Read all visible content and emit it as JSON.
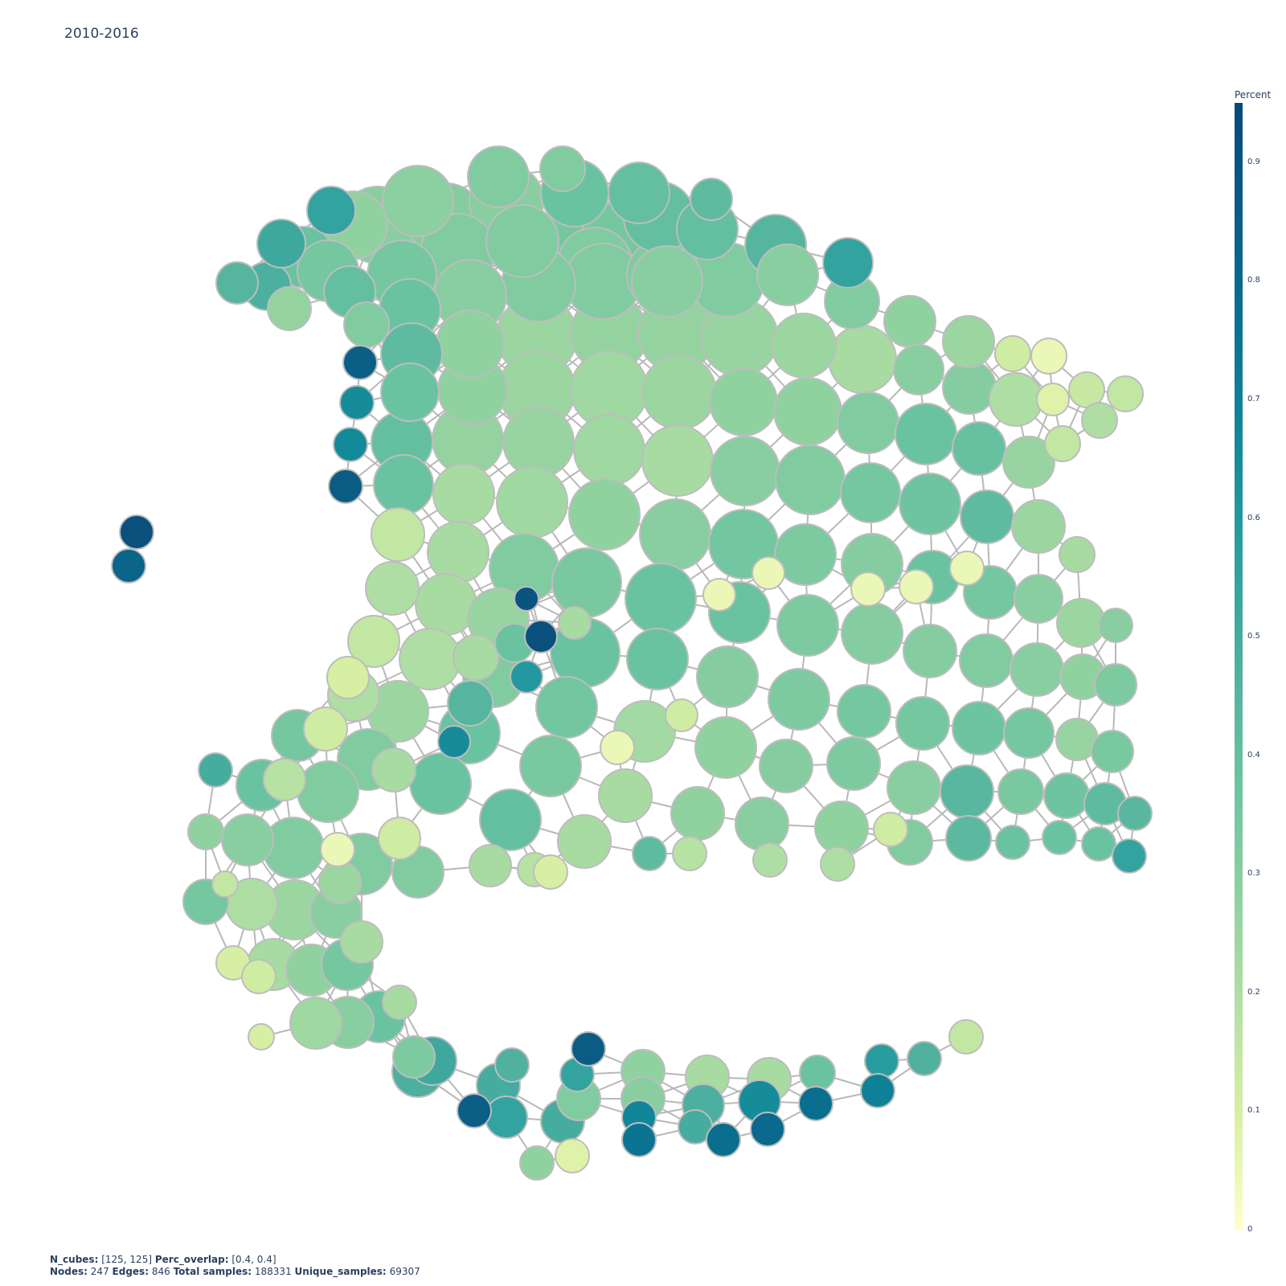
{
  "title": "2010-2016",
  "colorbar": {
    "title": "Percent",
    "ticks": [
      "0",
      "0.1",
      "0.2",
      "0.3",
      "0.4",
      "0.5",
      "0.6",
      "0.7",
      "0.8",
      "0.9"
    ],
    "colorscale": [
      "#ffffcc",
      "#d9f0a3",
      "#b2e0a3",
      "#8ed0a0",
      "#6ac3a0",
      "#4fb09f",
      "#2b9fa0",
      "#12899a",
      "#0a7291",
      "#0b5d85",
      "#084a7a"
    ]
  },
  "footer": {
    "n_cubes_label": "N_cubes:",
    "n_cubes_value": "[125, 125]",
    "perc_overlap_label": "Perc_overlap:",
    "perc_overlap_value": "[0.4, 0.4]",
    "nodes_label": "Nodes:",
    "nodes_value": "247",
    "edges_label": "Edges:",
    "edges_value": "846",
    "total_samples_label": "Total samples:",
    "total_samples_value": "188331",
    "unique_samples_label": "Unique_samples:",
    "unique_samples_value": "69307"
  },
  "styles": {
    "edge_color": "#b8b8b8",
    "node_border": "#bdbdbd"
  }
}
